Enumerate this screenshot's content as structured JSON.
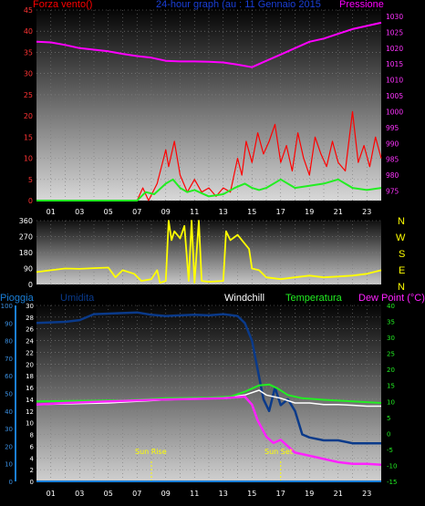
{
  "header": {
    "wind_label": "Forza vento()",
    "title": "24-hour graph (au : 11 Gennaio 2015",
    "pressure_label": "Pressione"
  },
  "compass": [
    "N",
    "W",
    "S",
    "E",
    "N"
  ],
  "bottom_header": {
    "rain": "Pioggia",
    "humidity": "Umidita",
    "windchill": "Windchill",
    "temperature": "Temperatura",
    "dewpoint": "Dew Point (°C)"
  },
  "sun": {
    "rise": "Sun Rise",
    "set": "Sun Set"
  },
  "colors": {
    "wind": "#ff0000",
    "gust_avg": "#22ee22",
    "pressure": "#ff00ff",
    "direction": "#ffff00",
    "humidity": "#0a3a8a",
    "temperature": "#22ee22",
    "windchill": "#ffffff",
    "dewpoint": "#ff22ff",
    "rain": "#1a7fd8",
    "title": "#1a3fd8"
  },
  "chart_data": [
    {
      "type": "line",
      "title": "24-hour graph (au : 11 Gennaio 2015",
      "x_ticks": [
        "01",
        "03",
        "05",
        "07",
        "09",
        "11",
        "13",
        "15",
        "17",
        "19",
        "21",
        "23"
      ],
      "xlim": [
        0,
        24
      ],
      "ylabel_left": "Forza vento()",
      "ylim_left": [
        0,
        45
      ],
      "y_ticks_left": [
        "0",
        "5",
        "10",
        "15",
        "20",
        "25",
        "30",
        "35",
        "40",
        "45"
      ],
      "ylabel_right": "Pressione",
      "ylim_right": [
        972,
        1032
      ],
      "y_ticks_right": [
        "975",
        "980",
        "985",
        "990",
        "995",
        "1000",
        "1005",
        "1010",
        "1015",
        "1020",
        "1025",
        "1030"
      ],
      "series": [
        {
          "axis": "right",
          "points": [
            [
              0,
              1022
            ],
            [
              1,
              1021.8
            ],
            [
              2,
              1021
            ],
            [
              3,
              1020
            ],
            [
              4,
              1019.5
            ],
            [
              5,
              1019
            ],
            [
              6,
              1018.2
            ],
            [
              7,
              1017.5
            ],
            [
              8,
              1017
            ],
            [
              9,
              1016
            ],
            [
              10,
              1015.8
            ],
            [
              11,
              1015.8
            ],
            [
              12,
              1015.7
            ],
            [
              13,
              1015.5
            ],
            [
              14,
              1014.8
            ],
            [
              15,
              1014
            ],
            [
              16,
              1016
            ],
            [
              17,
              1018
            ],
            [
              18,
              1020
            ],
            [
              19,
              1022
            ],
            [
              20,
              1023
            ],
            [
              21,
              1024.5
            ],
            [
              22,
              1026
            ],
            [
              23,
              1027
            ],
            [
              24,
              1028
            ]
          ]
        },
        {
          "axis": "left",
          "points": [
            [
              0,
              0
            ],
            [
              7,
              0
            ],
            [
              7.6,
              2
            ],
            [
              8.2,
              1.5
            ],
            [
              9,
              4
            ],
            [
              9.5,
              5
            ],
            [
              10,
              3
            ],
            [
              10.5,
              2
            ],
            [
              11,
              2.5
            ],
            [
              12,
              1
            ],
            [
              13,
              1.5
            ],
            [
              13.8,
              3
            ],
            [
              14.5,
              4
            ],
            [
              15,
              3
            ],
            [
              15.5,
              2.5
            ],
            [
              16,
              3
            ],
            [
              17,
              5
            ],
            [
              18,
              3
            ],
            [
              19,
              3.5
            ],
            [
              20,
              4
            ],
            [
              21,
              5
            ],
            [
              22,
              3
            ],
            [
              23,
              2.5
            ],
            [
              24,
              3
            ]
          ]
        },
        {
          "axis": "left",
          "points": [
            [
              0,
              0
            ],
            [
              7,
              0
            ],
            [
              7.4,
              3
            ],
            [
              7.8,
              0
            ],
            [
              8.4,
              4
            ],
            [
              9,
              12
            ],
            [
              9.2,
              8
            ],
            [
              9.6,
              14
            ],
            [
              10,
              6
            ],
            [
              10.5,
              2
            ],
            [
              11,
              5
            ],
            [
              11.5,
              2
            ],
            [
              12,
              3
            ],
            [
              12.5,
              1
            ],
            [
              13,
              3
            ],
            [
              13.5,
              2
            ],
            [
              14,
              10
            ],
            [
              14.3,
              6
            ],
            [
              14.6,
              14
            ],
            [
              15,
              9
            ],
            [
              15.4,
              16
            ],
            [
              15.8,
              11
            ],
            [
              16.2,
              14
            ],
            [
              16.6,
              18
            ],
            [
              17,
              9
            ],
            [
              17.4,
              13
            ],
            [
              17.8,
              7
            ],
            [
              18.2,
              16
            ],
            [
              18.6,
              10
            ],
            [
              19,
              6
            ],
            [
              19.4,
              15
            ],
            [
              19.8,
              11
            ],
            [
              20.2,
              8
            ],
            [
              20.6,
              14
            ],
            [
              21,
              9
            ],
            [
              21.5,
              7
            ],
            [
              22,
              21
            ],
            [
              22.4,
              9
            ],
            [
              22.8,
              13
            ],
            [
              23.2,
              8
            ],
            [
              23.6,
              15
            ],
            [
              24,
              10
            ]
          ]
        }
      ]
    },
    {
      "type": "line",
      "ylabel_left": "",
      "ylim": [
        0,
        360
      ],
      "y_ticks": [
        "0",
        "90",
        "180",
        "270",
        "360"
      ],
      "right_labels": [
        "N",
        "W",
        "S",
        "E",
        "N"
      ],
      "series": [
        {
          "points": [
            [
              0,
              70
            ],
            [
              1,
              80
            ],
            [
              2,
              90
            ],
            [
              3,
              88
            ],
            [
              4,
              92
            ],
            [
              5,
              95
            ],
            [
              5.5,
              40
            ],
            [
              6,
              80
            ],
            [
              6.8,
              60
            ],
            [
              7.3,
              20
            ],
            [
              8,
              30
            ],
            [
              8.4,
              80
            ],
            [
              8.6,
              10
            ],
            [
              9,
              20
            ],
            [
              9.2,
              360
            ],
            [
              9.4,
              250
            ],
            [
              9.6,
              300
            ],
            [
              10,
              260
            ],
            [
              10.3,
              330
            ],
            [
              10.6,
              20
            ],
            [
              10.8,
              360
            ],
            [
              11,
              10
            ],
            [
              11.3,
              360
            ],
            [
              11.5,
              20
            ],
            [
              12,
              15
            ],
            [
              13,
              20
            ],
            [
              13.2,
              300
            ],
            [
              13.5,
              250
            ],
            [
              14,
              280
            ],
            [
              14.5,
              230
            ],
            [
              14.8,
              200
            ],
            [
              15,
              90
            ],
            [
              15.5,
              80
            ],
            [
              16,
              40
            ],
            [
              17,
              30
            ],
            [
              18,
              40
            ],
            [
              19,
              50
            ],
            [
              20,
              40
            ],
            [
              21,
              45
            ],
            [
              22,
              50
            ],
            [
              23,
              60
            ],
            [
              24,
              80
            ]
          ]
        }
      ]
    },
    {
      "type": "line",
      "ylabel_left": "Pioggia",
      "ylim_rain": [
        0,
        100
      ],
      "y_ticks_rain": [
        "0",
        "10",
        "20",
        "30",
        "40",
        "50",
        "60",
        "70",
        "80",
        "90",
        "100"
      ],
      "ylabel_humidity": "Umidita",
      "ylim_humidity": [
        0,
        30
      ],
      "y_ticks_humidity": [
        "0",
        "2",
        "4",
        "6",
        "8",
        "10",
        "12",
        "14",
        "16",
        "18",
        "20",
        "22",
        "24",
        "26",
        "28",
        "30"
      ],
      "ylabel_right": "Dew Point (°C)",
      "ylim_right": [
        -15,
        40
      ],
      "y_ticks_right": [
        "-15",
        "-10",
        "-5",
        "0",
        "5",
        "10",
        "15",
        "20",
        "25",
        "30",
        "35",
        "40"
      ],
      "legend": [
        "Windchill",
        "Temperatura",
        "Dew Point (°C)"
      ],
      "annotations": [
        {
          "x": 8.0,
          "text": "Sun Rise"
        },
        {
          "x": 17.0,
          "text": "Sun Set"
        }
      ],
      "series": [
        {
          "name": "Umidita",
          "axis": "humidity",
          "points": [
            [
              0,
              27
            ],
            [
              2,
              27.2
            ],
            [
              3,
              27.5
            ],
            [
              4,
              28.5
            ],
            [
              5,
              28.6
            ],
            [
              6,
              28.7
            ],
            [
              7,
              28.8
            ],
            [
              8,
              28.4
            ],
            [
              9,
              28.2
            ],
            [
              10,
              28.3
            ],
            [
              11,
              28.4
            ],
            [
              12,
              28.3
            ],
            [
              13,
              28.5
            ],
            [
              14,
              28.2
            ],
            [
              14.5,
              27
            ],
            [
              15,
              24
            ],
            [
              15.4,
              19
            ],
            [
              15.8,
              14
            ],
            [
              16.2,
              12
            ],
            [
              16.6,
              16
            ],
            [
              17,
              13
            ],
            [
              17.5,
              14
            ],
            [
              18,
              12
            ],
            [
              18.5,
              8
            ],
            [
              19,
              7.5
            ],
            [
              20,
              7
            ],
            [
              21,
              7
            ],
            [
              22,
              6.5
            ],
            [
              23,
              6.5
            ],
            [
              24,
              6.5
            ]
          ]
        },
        {
          "name": "Windchill",
          "axis": "right",
          "points": [
            [
              0,
              9
            ],
            [
              5,
              9.5
            ],
            [
              9,
              10.5
            ],
            [
              13,
              11
            ],
            [
              14.5,
              12
            ],
            [
              15.5,
              13.5
            ],
            [
              16,
              12
            ],
            [
              17,
              11
            ],
            [
              18,
              9.5
            ],
            [
              19,
              9.5
            ],
            [
              20,
              9
            ],
            [
              21,
              9
            ],
            [
              22,
              8.8
            ],
            [
              23,
              8.5
            ],
            [
              24,
              8.5
            ]
          ]
        },
        {
          "name": "Temperatura",
          "axis": "right",
          "points": [
            [
              0,
              10
            ],
            [
              3,
              10.2
            ],
            [
              6,
              10.3
            ],
            [
              9,
              11
            ],
            [
              12,
              11.2
            ],
            [
              13.5,
              11.5
            ],
            [
              14.5,
              13
            ],
            [
              15.5,
              15
            ],
            [
              16.2,
              15.3
            ],
            [
              16.8,
              14
            ],
            [
              17.5,
              12
            ],
            [
              18.5,
              11
            ],
            [
              20,
              10.5
            ],
            [
              22,
              10
            ],
            [
              24,
              9.5
            ]
          ]
        },
        {
          "name": "Dew Point (°C)",
          "axis": "right",
          "points": [
            [
              0,
              9
            ],
            [
              2,
              9.5
            ],
            [
              5,
              10
            ],
            [
              8,
              10.5
            ],
            [
              11,
              10.8
            ],
            [
              13,
              11
            ],
            [
              14.5,
              11.5
            ],
            [
              15,
              9
            ],
            [
              15.4,
              4
            ],
            [
              16,
              -1
            ],
            [
              16.5,
              -3
            ],
            [
              17,
              -2
            ],
            [
              17.5,
              -4
            ],
            [
              18,
              -6
            ],
            [
              19,
              -7
            ],
            [
              20,
              -8
            ],
            [
              21,
              -9
            ],
            [
              22,
              -9.5
            ],
            [
              23,
              -9.5
            ],
            [
              24,
              -9.8
            ]
          ]
        },
        {
          "name": "Pioggia",
          "axis": "rain",
          "points": [
            [
              0,
              0
            ],
            [
              24,
              0
            ]
          ]
        }
      ]
    }
  ]
}
